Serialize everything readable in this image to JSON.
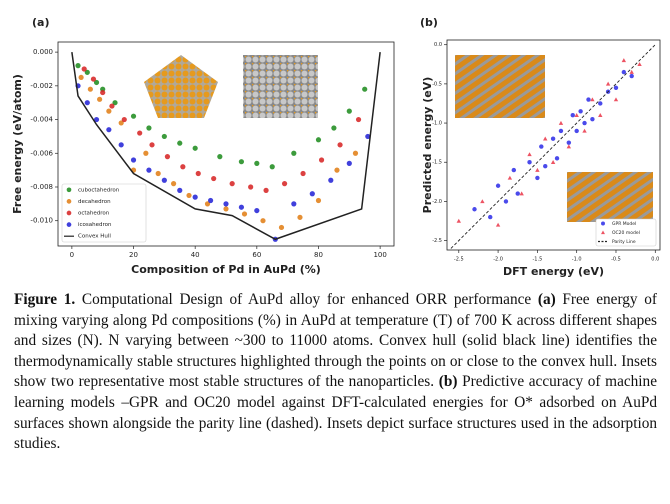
{
  "chart_data": [
    {
      "type": "scatter",
      "panel_label": "(a)",
      "xlabel": "Composition of Pd in AuPd (%)",
      "ylabel": "Free energy (eV/atom)",
      "xlim": [
        -4.5,
        104.5
      ],
      "ylim": [
        -0.0115,
        0.0006
      ],
      "xticks": [
        0,
        20,
        40,
        60,
        80,
        100
      ],
      "yticks": [
        {
          "value": 0,
          "label": "0.000"
        },
        {
          "value": -0.002,
          "label": "-0.002"
        },
        {
          "value": -0.004,
          "label": "-0.004"
        },
        {
          "value": -0.006,
          "label": "-0.006"
        },
        {
          "value": -0.008,
          "label": "-0.008"
        },
        {
          "value": -0.01,
          "label": "-0.010"
        }
      ],
      "grid": false,
      "legend": "lower left",
      "series": [
        {
          "name": "cuboctahedron",
          "color": "#1a8a1a",
          "marker": "circle",
          "x": [
            2,
            5,
            8,
            10,
            14,
            20,
            25,
            30,
            35,
            40,
            48,
            55,
            60,
            65,
            72,
            80,
            85,
            90,
            95
          ],
          "values": [
            -0.0008,
            -0.0012,
            -0.0018,
            -0.0022,
            -0.003,
            -0.0038,
            -0.0045,
            -0.005,
            -0.0054,
            -0.0057,
            -0.0062,
            -0.0065,
            -0.0066,
            -0.0068,
            -0.006,
            -0.0052,
            -0.0045,
            -0.0035,
            -0.0022
          ]
        },
        {
          "name": "decahedron",
          "color": "#e07b10",
          "marker": "circle",
          "x": [
            3,
            6,
            9,
            12,
            16,
            20,
            24,
            28,
            33,
            38,
            44,
            50,
            56,
            62,
            68,
            74,
            80,
            86,
            92
          ],
          "values": [
            -0.0015,
            -0.0022,
            -0.0028,
            -0.0035,
            -0.0042,
            -0.007,
            -0.006,
            -0.0072,
            -0.0078,
            -0.0085,
            -0.009,
            -0.0093,
            -0.0096,
            -0.01,
            -0.0104,
            -0.0098,
            -0.0088,
            -0.007,
            -0.006
          ]
        },
        {
          "name": "octahedron",
          "color": "#d62020",
          "marker": "circle",
          "x": [
            4,
            7,
            10,
            13,
            17,
            22,
            26,
            31,
            36,
            41,
            46,
            52,
            58,
            63,
            69,
            75,
            81,
            87,
            93
          ],
          "values": [
            -0.001,
            -0.0016,
            -0.0024,
            -0.0032,
            -0.004,
            -0.0048,
            -0.0055,
            -0.0062,
            -0.0068,
            -0.0072,
            -0.0075,
            -0.0078,
            -0.008,
            -0.0082,
            -0.0078,
            -0.0072,
            -0.0064,
            -0.0055,
            -0.004
          ]
        },
        {
          "name": "icosahedron",
          "color": "#1f1fd6",
          "marker": "circle",
          "x": [
            2,
            5,
            8,
            12,
            16,
            20,
            25,
            30,
            35,
            40,
            45,
            50,
            55,
            60,
            66,
            72,
            78,
            84,
            90,
            96
          ],
          "values": [
            -0.002,
            -0.003,
            -0.004,
            -0.0046,
            -0.0055,
            -0.0064,
            -0.007,
            -0.0076,
            -0.0082,
            -0.0086,
            -0.0088,
            -0.009,
            -0.0092,
            -0.0094,
            -0.0111,
            -0.009,
            -0.0084,
            -0.0076,
            -0.0066,
            -0.005
          ]
        },
        {
          "name": "Convex Hull",
          "color": "#222222",
          "marker": "line",
          "x": [
            0,
            2,
            8,
            20,
            40,
            52,
            66,
            94,
            100
          ],
          "values": [
            0,
            -0.0026,
            -0.0043,
            -0.0072,
            -0.0093,
            -0.0097,
            -0.0111,
            -0.0093,
            0
          ]
        }
      ]
    },
    {
      "type": "scatter",
      "panel_label": "(b)",
      "xlabel": "DFT energy (eV)",
      "ylabel": "Predicted energy (eV)",
      "xlim": [
        -2.65,
        0.06
      ],
      "ylim": [
        -2.62,
        0.06
      ],
      "xticks": [
        -2.5,
        {
          "value": -2,
          "label": "-2.0"
        },
        -1.5,
        {
          "value": -1,
          "label": "-1.0"
        },
        -0.5,
        {
          "value": 0,
          "label": "0.0"
        }
      ],
      "yticks": [
        -2.5,
        {
          "value": -2,
          "label": "-2.0"
        },
        -1.5,
        {
          "value": -1,
          "label": "-1.0"
        },
        -0.5,
        {
          "value": 0,
          "label": "0.0"
        }
      ],
      "grid": false,
      "legend": "lower right",
      "series": [
        {
          "name": "GPR Model",
          "color": "#2a2ae8",
          "marker": "circle",
          "x": [
            -2.3,
            -2.1,
            -2.0,
            -1.9,
            -1.8,
            -1.75,
            -1.6,
            -1.5,
            -1.45,
            -1.4,
            -1.3,
            -1.25,
            -1.2,
            -1.1,
            -1.05,
            -1.0,
            -0.95,
            -0.9,
            -0.85,
            -0.8,
            -0.7,
            -0.6,
            -0.5,
            -0.4,
            -0.3
          ],
          "values": [
            -2.1,
            -2.2,
            -1.8,
            -2.0,
            -1.6,
            -1.9,
            -1.5,
            -1.7,
            -1.3,
            -1.55,
            -1.2,
            -1.45,
            -1.1,
            -1.25,
            -0.9,
            -1.1,
            -0.85,
            -1.0,
            -0.7,
            -0.95,
            -0.75,
            -0.6,
            -0.55,
            -0.35,
            -0.4
          ]
        },
        {
          "name": "OC20 model",
          "color": "#e8283c",
          "marker": "triangle",
          "x": [
            -2.5,
            -2.2,
            -2.0,
            -1.85,
            -1.7,
            -1.6,
            -1.5,
            -1.4,
            -1.3,
            -1.2,
            -1.1,
            -1.0,
            -0.9,
            -0.8,
            -0.7,
            -0.6,
            -0.5,
            -0.4,
            -0.3,
            -0.2
          ],
          "values": [
            -2.25,
            -2.0,
            -2.3,
            -1.7,
            -1.9,
            -1.4,
            -1.6,
            -1.2,
            -1.5,
            -1.0,
            -1.3,
            -0.9,
            -1.1,
            -0.7,
            -0.9,
            -0.5,
            -0.7,
            -0.2,
            -0.35,
            -0.25
          ]
        },
        {
          "name": "Parity Line",
          "color": "#222222",
          "marker": "dashed-line",
          "x": [
            -2.6,
            0
          ],
          "values": [
            -2.6,
            0
          ]
        }
      ]
    }
  ],
  "caption": [
    {
      "text": "Figure 1.",
      "bold": true
    },
    {
      "text": " Computational Design of AuPd alloy for enhanced ORR performance ",
      "bold": false
    },
    {
      "text": "(a)",
      "bold": true
    },
    {
      "text": " Free energy of mixing varying along Pd compositions (%) in AuPd at temperature (T) of 700 K across different shapes and sizes (N). N varying between ~300 to 11000 atoms. Convex hull (solid black line) identifies the thermodynamically stable structures highlighted through the points on or close to the convex hull. Insets show two representative most stable structures of the nanoparticles. ",
      "bold": false
    },
    {
      "text": "(b)",
      "bold": true
    },
    {
      "text": " Predictive accuracy of machine learning models –GPR and OC20 model against DFT-calculated energies for O* adsorbed on AuPd surfaces shown alongside the parity line (dashed). Insets depict surface structures used in the adsorption studies.",
      "bold": false
    }
  ]
}
